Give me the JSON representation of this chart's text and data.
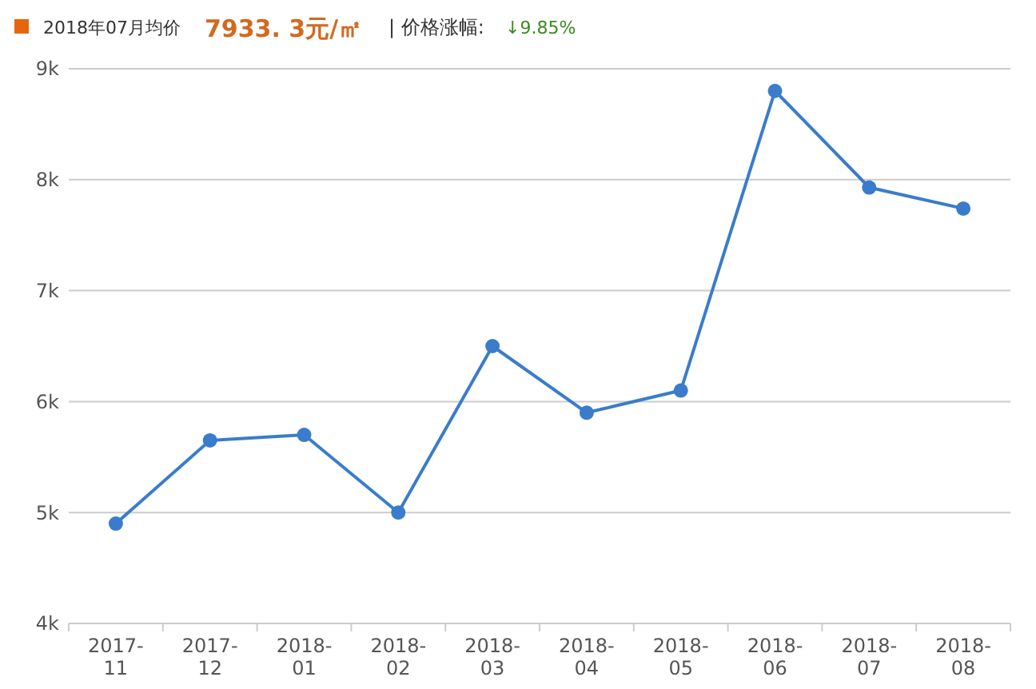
{
  "chart_data": {
    "type": "line",
    "title": "2018年07月均价",
    "subtitle": "7933. 3元/㎡",
    "annotations": [
      "| 价格涨幅:",
      "↓9.85%"
    ],
    "categories": [
      "2017-11",
      "2017-12",
      "2018-01",
      "2018-02",
      "2018-03",
      "2018-04",
      "2018-05",
      "2018-06",
      "2018-07",
      "2018-08"
    ],
    "series": [
      {
        "color": "#3a7ccb",
        "values": [
          4900,
          5650,
          5700,
          5000,
          6500,
          5900,
          6100,
          8800,
          7930,
          7740
        ]
      }
    ],
    "ylim": [
      4000,
      9000
    ],
    "yticks": [
      {
        "value": 4000,
        "label": "4k"
      },
      {
        "value": 5000,
        "label": "5k"
      },
      {
        "value": 6000,
        "label": "6k"
      },
      {
        "value": 7000,
        "label": "7k"
      },
      {
        "value": 8000,
        "label": "8k"
      },
      {
        "value": 9000,
        "label": "9k"
      }
    ],
    "grid": "y",
    "marker": "circle"
  }
}
